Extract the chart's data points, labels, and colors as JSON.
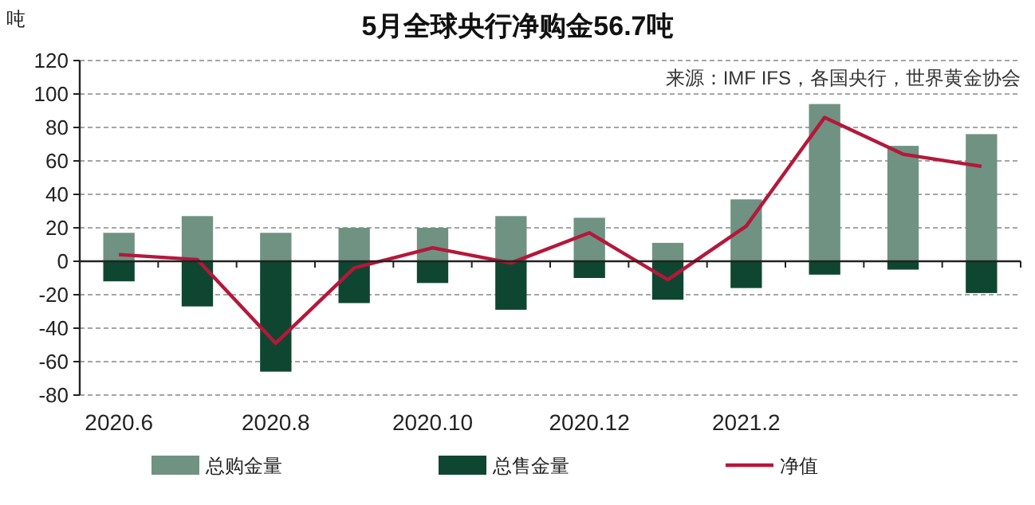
{
  "chart_data": {
    "type": "bar",
    "title": "5月全球央行净购金56.7吨",
    "ylabel": "吨",
    "annotations": [
      "来源：IMF IFS，各国央行，世界黄金协会"
    ],
    "categories": [
      "2020.6",
      null,
      "2020.8",
      null,
      "2020.10",
      null,
      "2020.12",
      null,
      "2021.2",
      null,
      null,
      null
    ],
    "series": [
      {
        "name": "总购金量",
        "color": "#6f9282",
        "values": [
          17,
          27,
          17,
          20,
          20,
          27,
          26,
          11,
          37,
          94,
          69,
          76
        ]
      },
      {
        "name": "总售金量",
        "color": "#0f4632",
        "values": [
          -12,
          -27,
          -66,
          -25,
          -13,
          -29,
          -10,
          -23,
          -16,
          -8,
          -5,
          -19
        ]
      },
      {
        "name": "净值",
        "type": "line",
        "color": "#b5173a",
        "values": [
          4,
          1,
          -49,
          -4,
          8,
          -1,
          17,
          -11,
          21,
          86,
          64,
          56.7
        ]
      }
    ],
    "ylim": [
      -80,
      120
    ],
    "yticks": [
      -80,
      -60,
      -40,
      -20,
      0,
      20,
      40,
      60,
      80,
      100,
      120
    ],
    "stacked": true,
    "grid": "y",
    "legend": "bottom"
  }
}
